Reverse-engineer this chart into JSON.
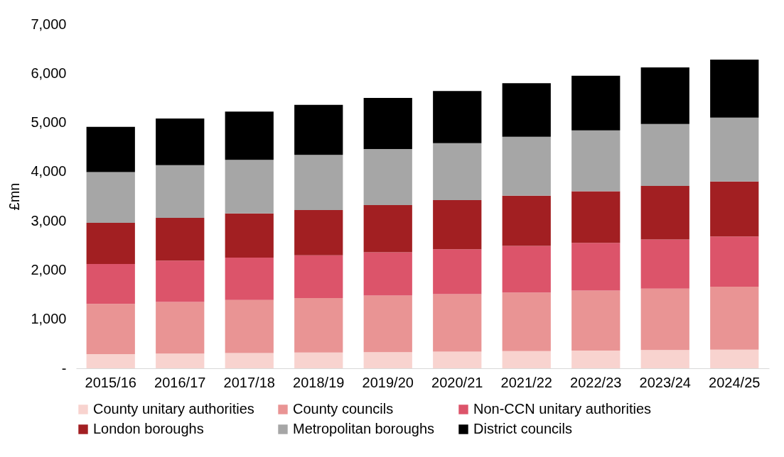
{
  "chart_data": {
    "type": "bar",
    "stacked": true,
    "ylabel": "£mn",
    "categories": [
      "2015/16",
      "2016/17",
      "2017/18",
      "2018/19",
      "2019/20",
      "2020/21",
      "2021/22",
      "2022/23",
      "2023/24",
      "2024/25"
    ],
    "series": [
      {
        "name": "County unitary authorities",
        "color": "#f8d3cf",
        "values": [
          290,
          300,
          310,
          320,
          330,
          340,
          350,
          360,
          370,
          380
        ]
      },
      {
        "name": "County councils",
        "color": "#e99494",
        "values": [
          1020,
          1050,
          1080,
          1110,
          1150,
          1170,
          1190,
          1220,
          1250,
          1280
        ]
      },
      {
        "name": "Non-CCN unitary authorities",
        "color": "#dc546a",
        "values": [
          810,
          840,
          860,
          870,
          880,
          910,
          950,
          970,
          1000,
          1020
        ]
      },
      {
        "name": "London boroughs",
        "color": "#a21f22",
        "values": [
          840,
          870,
          900,
          920,
          960,
          1000,
          1020,
          1050,
          1090,
          1120
        ]
      },
      {
        "name": "Metropolitan boroughs",
        "color": "#a6a6a6",
        "values": [
          1030,
          1070,
          1090,
          1120,
          1140,
          1160,
          1200,
          1240,
          1260,
          1300
        ]
      },
      {
        "name": "District councils",
        "color": "#000000",
        "values": [
          920,
          950,
          980,
          1020,
          1040,
          1060,
          1090,
          1110,
          1150,
          1180
        ]
      }
    ],
    "ylim": [
      0,
      7000
    ],
    "yticks": [
      {
        "value": 0,
        "label": "-"
      },
      {
        "value": 1000,
        "label": "1,000"
      },
      {
        "value": 2000,
        "label": "2,000"
      },
      {
        "value": 3000,
        "label": "3,000"
      },
      {
        "value": 4000,
        "label": "4,000"
      },
      {
        "value": 5000,
        "label": "5,000"
      },
      {
        "value": 6000,
        "label": "6,000"
      },
      {
        "value": 7000,
        "label": "7,000"
      }
    ],
    "grid": false,
    "legend": "bottom"
  }
}
